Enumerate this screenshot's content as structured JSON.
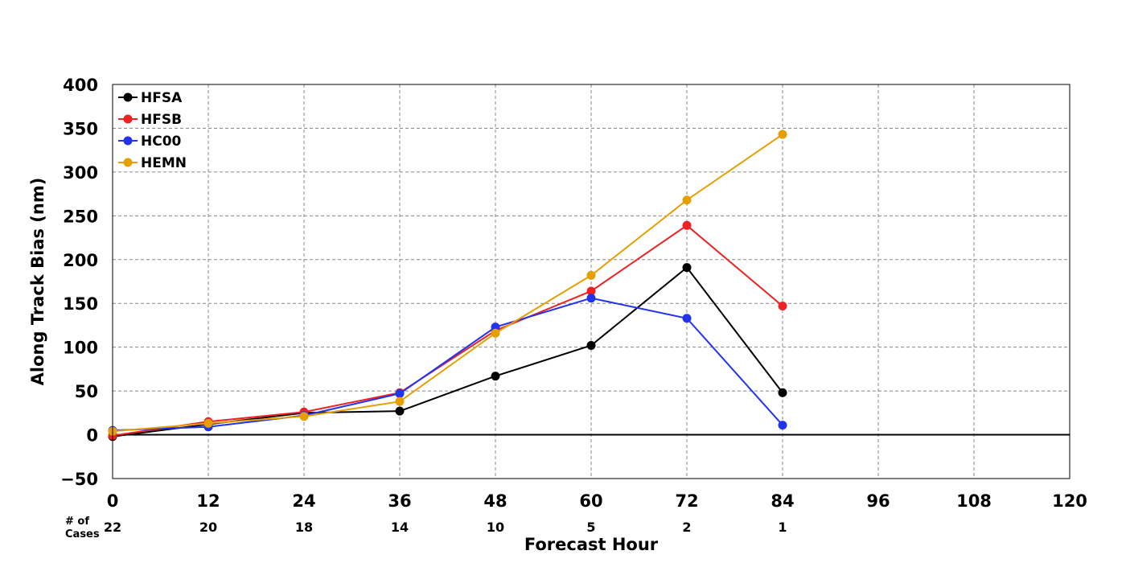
{
  "chart_data": {
    "type": "line",
    "xlabel": "Forecast Hour",
    "ylabel": "Along Track Bias (nm)",
    "x_ticks": [
      0,
      12,
      24,
      36,
      48,
      60,
      72,
      84,
      96,
      108,
      120
    ],
    "y_ticks": [
      -50,
      0,
      50,
      100,
      150,
      200,
      250,
      300,
      350,
      400
    ],
    "xlim": [
      0,
      120
    ],
    "ylim": [
      -50,
      400
    ],
    "grid": true,
    "legend_position": "top-left",
    "cases_label": "# of\nCases",
    "cases_x": [
      0,
      12,
      24,
      36,
      48,
      60,
      72,
      84
    ],
    "cases": [
      22,
      20,
      18,
      14,
      10,
      5,
      2,
      1
    ],
    "series": [
      {
        "name": "HFSA",
        "color": "#000000",
        "x": [
          0,
          12,
          24,
          36,
          48,
          60,
          72,
          84
        ],
        "y": [
          -2,
          12,
          25,
          27,
          67,
          102,
          191,
          48
        ]
      },
      {
        "name": "HFSB",
        "color": "#ee2222",
        "x": [
          0,
          12,
          24,
          36,
          48,
          60,
          72,
          84
        ],
        "y": [
          -1,
          15,
          26,
          48,
          119,
          164,
          239,
          147
        ]
      },
      {
        "name": "HC00",
        "color": "#2233ee",
        "x": [
          0,
          12,
          24,
          36,
          48,
          60,
          72,
          84
        ],
        "y": [
          5,
          9,
          22,
          47,
          123,
          156,
          133,
          11
        ]
      },
      {
        "name": "HEMN",
        "color": "#e69f00",
        "x": [
          0,
          12,
          24,
          36,
          48,
          60,
          72,
          84
        ],
        "y": [
          4,
          13,
          21,
          38,
          116,
          182,
          268,
          343
        ]
      }
    ]
  }
}
